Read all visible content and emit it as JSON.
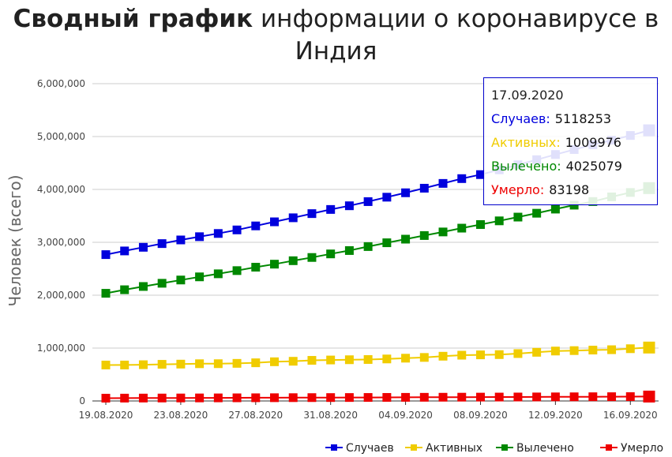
{
  "title": {
    "bold": "Сводный график",
    "rest": "информации о коронавирусе в Индия"
  },
  "chart_data": {
    "type": "line",
    "title": "Сводный график информации о коронавирусе в Индия",
    "ylabel": "Человек (всего)",
    "xlabel": "",
    "ylim": [
      0,
      6000000
    ],
    "yticks": [
      "0",
      "1,000,000",
      "2,000,000",
      "3,000,000",
      "4,000,000",
      "5,000,000",
      "6,000,000"
    ],
    "xtick_labels": [
      "19.08.2020",
      "23.08.2020",
      "27.08.2020",
      "31.08.2020",
      "04.09.2020",
      "08.09.2020",
      "12.09.2020",
      "16.09.2020"
    ],
    "x": [
      "19.08.2020",
      "20.08.2020",
      "21.08.2020",
      "22.08.2020",
      "23.08.2020",
      "24.08.2020",
      "25.08.2020",
      "26.08.2020",
      "27.08.2020",
      "28.08.2020",
      "29.08.2020",
      "30.08.2020",
      "31.08.2020",
      "01.09.2020",
      "02.09.2020",
      "03.09.2020",
      "04.09.2020",
      "05.09.2020",
      "06.09.2020",
      "07.09.2020",
      "08.09.2020",
      "09.09.2020",
      "10.09.2020",
      "11.09.2020",
      "12.09.2020",
      "13.09.2020",
      "14.09.2020",
      "15.09.2020",
      "16.09.2020",
      "17.09.2020"
    ],
    "grid": true,
    "legend_position": "bottom-right",
    "series": [
      {
        "name": "Случаев",
        "color": "#0000dd",
        "values": [
          2767273,
          2836925,
          2905823,
          2975701,
          3044940,
          3106348,
          3167323,
          3234474,
          3310234,
          3387500,
          3463972,
          3542733,
          3621245,
          3691166,
          3769523,
          3853406,
          3936747,
          4023179,
          4113811,
          4204613,
          4280422,
          4370128,
          4465863,
          4562414,
          4659984,
          4754356,
          4846427,
          4930236,
          5020359,
          5118253
        ]
      },
      {
        "name": "Активных",
        "color": "#f0cc00",
        "values": [
          679625,
          679968,
          685625,
          693006,
          696721,
          704302,
          704958,
          711094,
          721891,
          741389,
          750556,
          768032,
          774834,
          779826,
          783911,
          794286,
          809055,
          823048,
          845986,
          865357,
          871855,
          876580,
          896103,
          920158,
          944037,
          952287,
          962075,
          969282,
          988125,
          1009976
        ]
      },
      {
        "name": "Вылечено",
        "color": "#008800",
        "values": [
          2035978,
          2103248,
          2164694,
          2225658,
          2287296,
          2346850,
          2404681,
          2465004,
          2529436,
          2586898,
          2652141,
          2713249,
          2780698,
          2844315,
          2919638,
          2991452,
          3059677,
          3128301,
          3196000,
          3268000,
          3336000,
          3406000,
          3477000,
          3550000,
          3628000,
          3702595,
          3771394,
          3859399,
          3942360,
          4025079
        ]
      },
      {
        "name": "Умерло",
        "color": "#ee0000",
        "values": [
          52889,
          53866,
          54849,
          55794,
          56706,
          57542,
          58390,
          59449,
          60472,
          61529,
          62550,
          63498,
          64469,
          65288,
          66333,
          67376,
          68472,
          69561,
          70626,
          71642,
          72775,
          73890,
          75062,
          76271,
          77472,
          78586,
          79722,
          80776,
          82066,
          83198
        ]
      }
    ]
  },
  "tooltip": {
    "date": "17.09.2020",
    "rows": [
      {
        "label": "Случаев:",
        "value": "5118253",
        "color": "#0000dd"
      },
      {
        "label": "Активных:",
        "value": "1009976",
        "color": "#f0cc00"
      },
      {
        "label": "Вылечено:",
        "value": "4025079",
        "color": "#008800"
      },
      {
        "label": "Умерло:",
        "value": "83198",
        "color": "#ee0000"
      }
    ]
  }
}
